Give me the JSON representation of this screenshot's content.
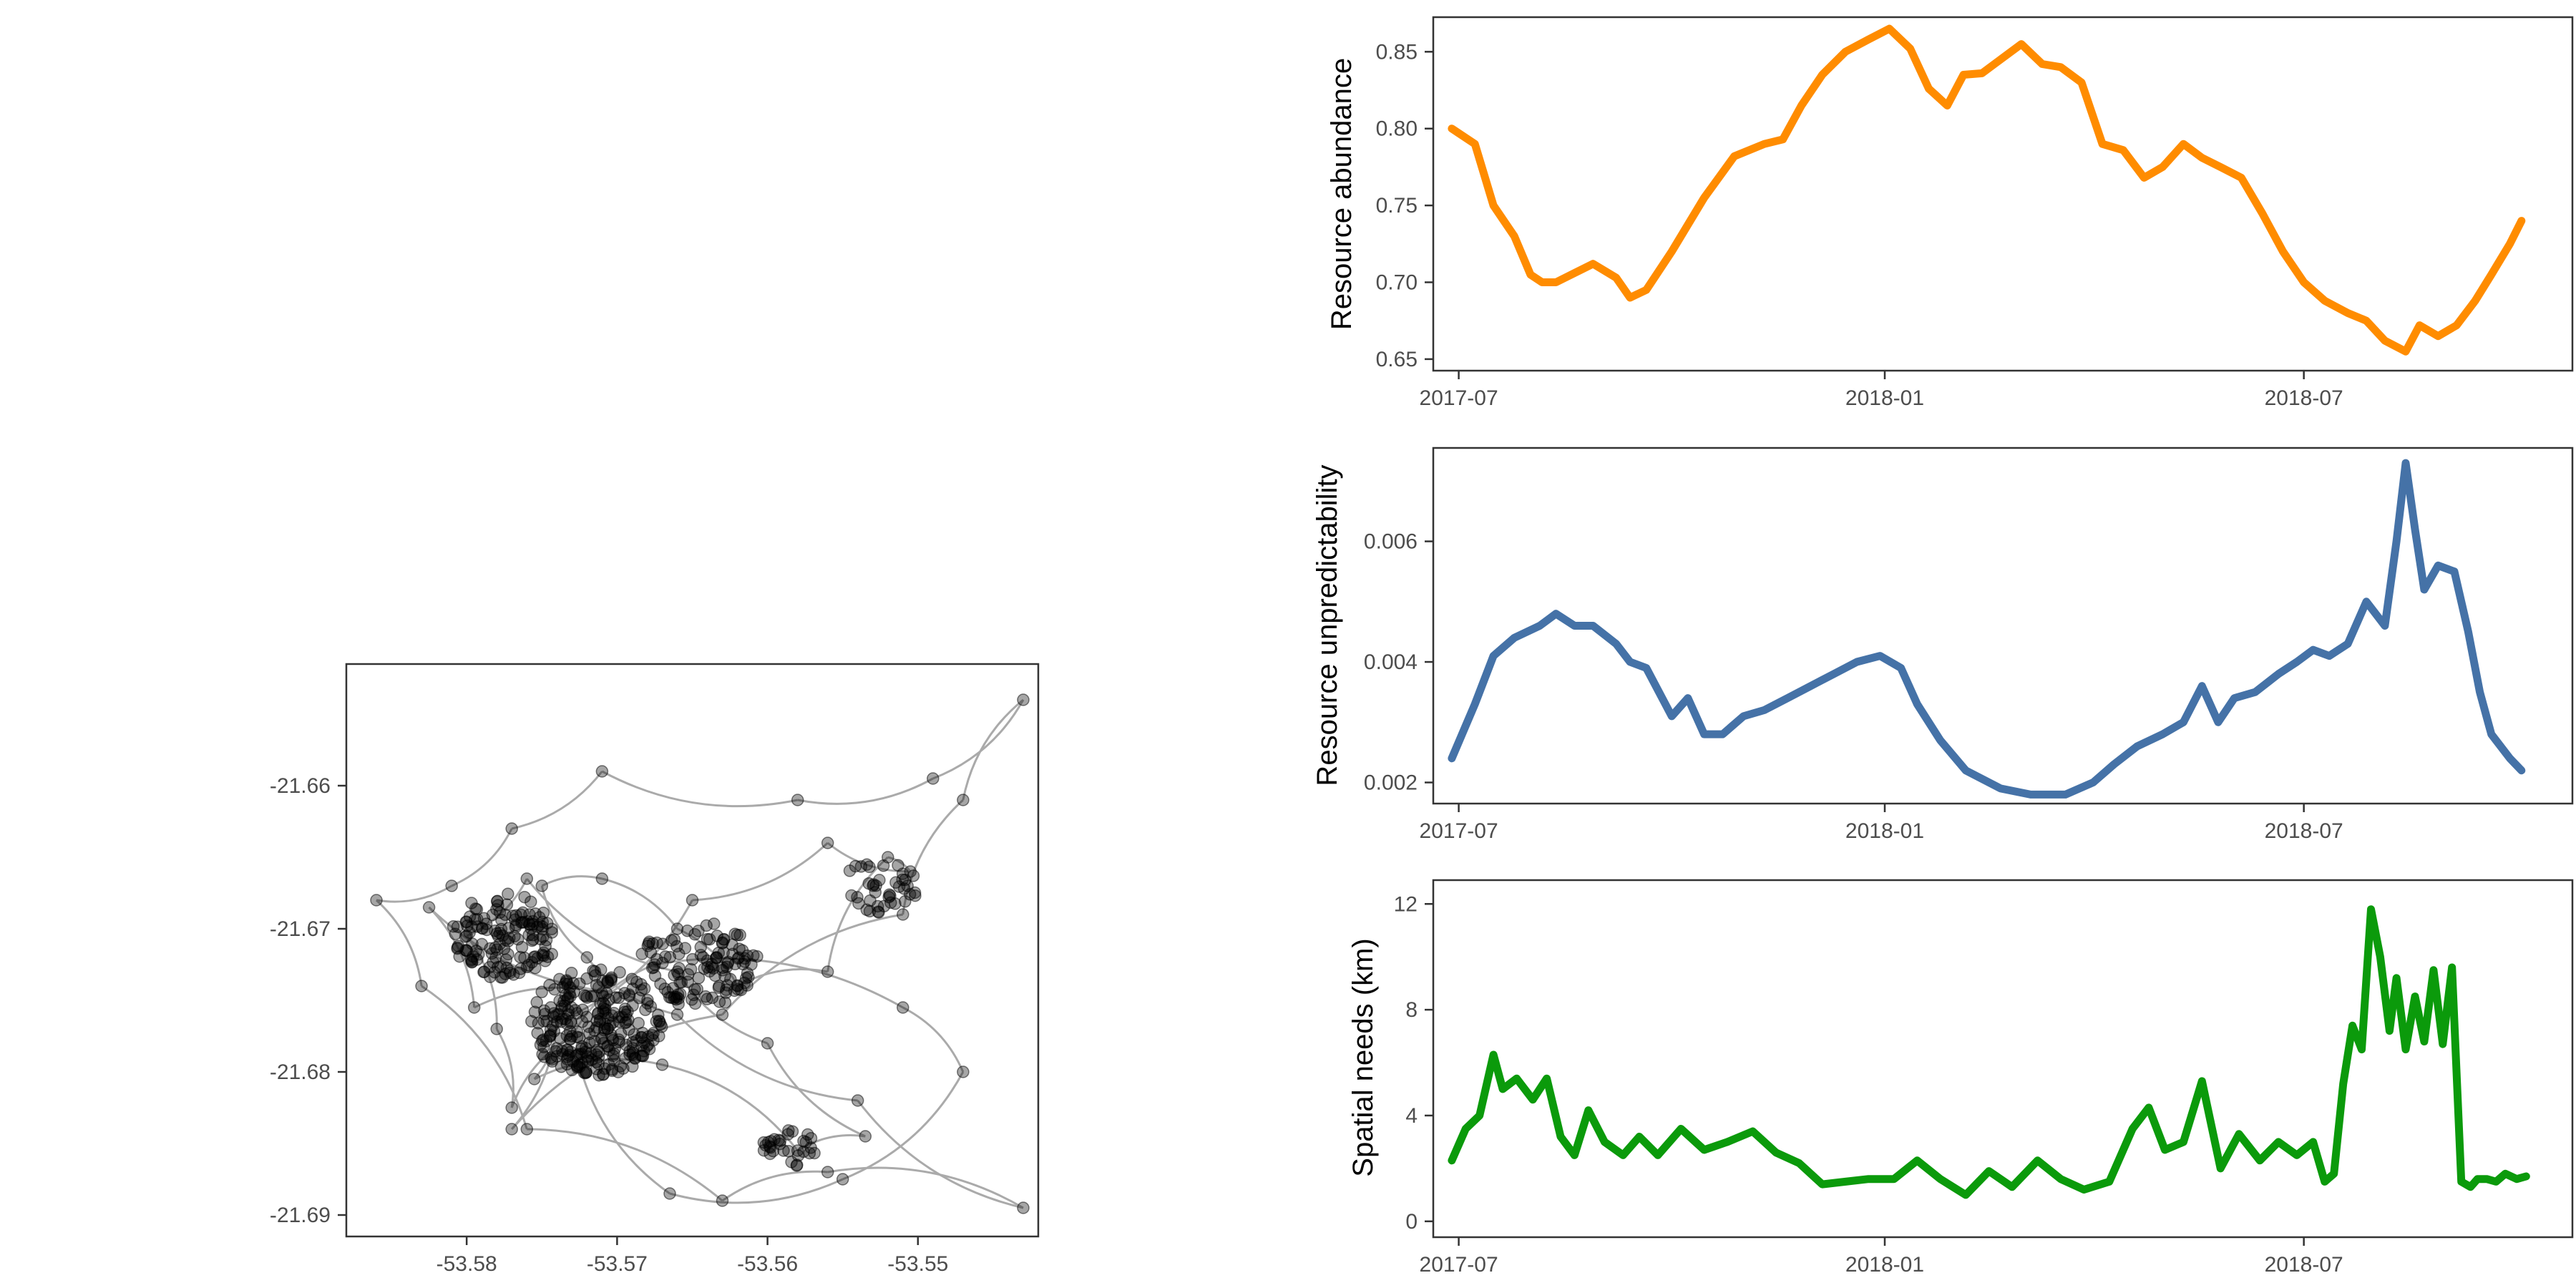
{
  "chart_data": [
    {
      "type": "scatter",
      "title": "",
      "xlabel": "",
      "ylabel": "",
      "xlim": [
        -53.588,
        -53.542
      ],
      "ylim": [
        -21.6915,
        -21.6515
      ],
      "xticks": [
        -53.58,
        -53.57,
        -53.56,
        -53.55
      ],
      "xtick_labels": [
        "-53.58",
        "-53.57",
        "-53.56",
        "-53.55"
      ],
      "yticks": [
        -21.66,
        -21.67,
        -21.68,
        -21.69
      ],
      "ytick_labels": [
        "-21.66",
        "-21.67",
        "-21.68",
        "-21.69"
      ],
      "grid": false,
      "point_color": "#000000",
      "track_color": "#aaaaaa",
      "track_points": [
        [
          -53.574,
          -21.676
        ],
        [
          -53.577,
          -21.684
        ],
        [
          -53.563,
          -21.676
        ],
        [
          -53.551,
          -21.669
        ],
        [
          -53.547,
          -21.661
        ],
        [
          -53.543,
          -21.654
        ],
        [
          -53.549,
          -21.6595
        ],
        [
          -53.558,
          -21.661
        ],
        [
          -53.571,
          -21.659
        ],
        [
          -53.577,
          -21.663
        ],
        [
          -53.581,
          -21.667
        ],
        [
          -53.586,
          -21.668
        ],
        [
          -53.583,
          -21.674
        ],
        [
          -53.576,
          -21.684
        ],
        [
          -53.563,
          -21.689
        ],
        [
          -53.556,
          -21.687
        ],
        [
          -53.543,
          -21.6895
        ],
        [
          -53.554,
          -21.682
        ],
        [
          -53.566,
          -21.676
        ],
        [
          -53.572,
          -21.672
        ],
        [
          -53.575,
          -21.667
        ],
        [
          -53.571,
          -21.6665
        ],
        [
          -53.566,
          -21.67
        ],
        [
          -53.562,
          -21.674
        ],
        [
          -53.556,
          -21.673
        ],
        [
          -53.552,
          -21.665
        ],
        [
          -53.5505,
          -21.666
        ],
        [
          -53.556,
          -21.664
        ],
        [
          -53.565,
          -21.668
        ],
        [
          -53.574,
          -21.6765
        ],
        [
          -53.5755,
          -21.6805
        ],
        [
          -53.567,
          -21.6795
        ],
        [
          -53.558,
          -21.6855
        ],
        [
          -53.5535,
          -21.6845
        ],
        [
          -53.56,
          -21.678
        ],
        [
          -53.566,
          -21.673
        ],
        [
          -53.576,
          -21.6665
        ],
        [
          -53.58,
          -21.6705
        ],
        [
          -53.578,
          -21.677
        ],
        [
          -53.577,
          -21.6825
        ],
        [
          -53.573,
          -21.6775
        ],
        [
          -53.5675,
          -21.6725
        ],
        [
          -53.551,
          -21.6755
        ],
        [
          -53.547,
          -21.68
        ],
        [
          -53.555,
          -21.6875
        ],
        [
          -53.5665,
          -21.6885
        ],
        [
          -53.5725,
          -21.6795
        ],
        [
          -53.5695,
          -21.6745
        ],
        [
          -53.5825,
          -21.6685
        ],
        [
          -53.5795,
          -21.6755
        ],
        [
          -53.571,
          -21.6745
        ]
      ]
    },
    {
      "type": "line",
      "title": "",
      "xlabel": "",
      "ylabel": "Resource abundance",
      "x_range": [
        "2017-06-20",
        "2018-10-25"
      ],
      "ylim": [
        0.6425,
        0.8725
      ],
      "xticks": [
        "2017-07-01",
        "2018-01-01",
        "2018-07-01"
      ],
      "xtick_labels": [
        "2017-07",
        "2018-01",
        "2018-07"
      ],
      "yticks": [
        0.65,
        0.7,
        0.75,
        0.8,
        0.85
      ],
      "ytick_labels": [
        "0.65",
        "0.70",
        "0.75",
        "0.80",
        "0.85"
      ],
      "grid": false,
      "color": "#ff8c00",
      "series": [
        {
          "x": [
            "2017-06-28",
            "2017-07-08",
            "2017-07-16",
            "2017-07-25",
            "2017-08-01",
            "2017-08-06",
            "2017-08-12",
            "2017-08-20",
            "2017-08-28",
            "2017-09-07",
            "2017-09-13",
            "2017-09-20",
            "2017-10-01",
            "2017-10-15",
            "2017-10-28",
            "2017-11-10",
            "2017-11-18",
            "2017-11-26",
            "2017-12-05",
            "2017-12-15",
            "2017-12-25",
            "2018-01-03",
            "2018-01-12",
            "2018-01-20",
            "2018-01-28",
            "2018-02-04",
            "2018-02-12",
            "2018-02-20",
            "2018-03-01",
            "2018-03-10",
            "2018-03-18",
            "2018-03-27",
            "2018-04-05",
            "2018-04-14",
            "2018-04-23",
            "2018-05-01",
            "2018-05-10",
            "2018-05-18",
            "2018-05-26",
            "2018-06-04",
            "2018-06-13",
            "2018-06-22",
            "2018-07-01",
            "2018-07-10",
            "2018-07-20",
            "2018-07-28",
            "2018-08-05",
            "2018-08-14",
            "2018-08-20",
            "2018-08-28",
            "2018-09-05",
            "2018-09-13",
            "2018-09-20",
            "2018-09-28",
            "2018-10-03"
          ],
          "y": [
            0.8,
            0.79,
            0.75,
            0.73,
            0.705,
            0.7,
            0.7,
            0.706,
            0.712,
            0.703,
            0.69,
            0.695,
            0.72,
            0.755,
            0.782,
            0.79,
            0.793,
            0.815,
            0.835,
            0.85,
            0.858,
            0.865,
            0.852,
            0.826,
            0.815,
            0.835,
            0.836,
            0.845,
            0.855,
            0.842,
            0.84,
            0.83,
            0.79,
            0.786,
            0.768,
            0.775,
            0.79,
            0.781,
            0.775,
            0.768,
            0.745,
            0.72,
            0.7,
            0.688,
            0.68,
            0.675,
            0.662,
            0.655,
            0.672,
            0.665,
            0.672,
            0.688,
            0.705,
            0.725,
            0.74
          ]
        }
      ]
    },
    {
      "type": "line",
      "title": "",
      "xlabel": "",
      "ylabel": "Resource unpredictability",
      "x_range": [
        "2017-06-20",
        "2018-10-25"
      ],
      "ylim": [
        0.00165,
        0.00755
      ],
      "xticks": [
        "2017-07-01",
        "2018-01-01",
        "2018-07-01"
      ],
      "xtick_labels": [
        "2017-07",
        "2018-01",
        "2018-07"
      ],
      "yticks": [
        0.002,
        0.004,
        0.006
      ],
      "ytick_labels": [
        "0.002",
        "0.004",
        "0.006"
      ],
      "grid": false,
      "color": "#4572a7",
      "series": [
        {
          "x": [
            "2017-06-28",
            "2017-07-08",
            "2017-07-16",
            "2017-07-25",
            "2017-08-05",
            "2017-08-12",
            "2017-08-20",
            "2017-08-28",
            "2017-09-07",
            "2017-09-13",
            "2017-09-20",
            "2017-10-01",
            "2017-10-08",
            "2017-10-15",
            "2017-10-23",
            "2017-11-01",
            "2017-11-10",
            "2017-11-20",
            "2017-11-30",
            "2017-12-10",
            "2017-12-20",
            "2017-12-30",
            "2018-01-08",
            "2018-01-15",
            "2018-01-25",
            "2018-02-05",
            "2018-02-20",
            "2018-03-05",
            "2018-03-20",
            "2018-04-01",
            "2018-04-10",
            "2018-04-20",
            "2018-05-01",
            "2018-05-10",
            "2018-05-18",
            "2018-05-25",
            "2018-06-01",
            "2018-06-10",
            "2018-06-20",
            "2018-06-28",
            "2018-07-05",
            "2018-07-12",
            "2018-07-20",
            "2018-07-28",
            "2018-08-05",
            "2018-08-10",
            "2018-08-14",
            "2018-08-18",
            "2018-08-22",
            "2018-08-28",
            "2018-09-04",
            "2018-09-10",
            "2018-09-15",
            "2018-09-20",
            "2018-09-28",
            "2018-10-03"
          ],
          "y": [
            0.0024,
            0.0033,
            0.0041,
            0.0044,
            0.0046,
            0.0048,
            0.0046,
            0.0046,
            0.0043,
            0.004,
            0.0039,
            0.0031,
            0.0034,
            0.0028,
            0.0028,
            0.0031,
            0.0032,
            0.0034,
            0.0036,
            0.0038,
            0.004,
            0.0041,
            0.0039,
            0.0033,
            0.0027,
            0.0022,
            0.0019,
            0.0018,
            0.0018,
            0.002,
            0.0023,
            0.0026,
            0.0028,
            0.003,
            0.0036,
            0.003,
            0.0034,
            0.0035,
            0.0038,
            0.004,
            0.0042,
            0.0041,
            0.0043,
            0.005,
            0.0046,
            0.006,
            0.0073,
            0.0062,
            0.0052,
            0.0056,
            0.0055,
            0.0045,
            0.0035,
            0.0028,
            0.0024,
            0.0022
          ]
        }
      ]
    },
    {
      "type": "line",
      "title": "",
      "xlabel": "",
      "ylabel": "Spatial needs (km)",
      "x_range": [
        "2017-06-20",
        "2018-10-25"
      ],
      "ylim": [
        -0.6,
        12.9
      ],
      "xticks": [
        "2017-07-01",
        "2018-01-01",
        "2018-07-01"
      ],
      "xtick_labels": [
        "2017-07",
        "2018-01",
        "2018-07"
      ],
      "yticks": [
        0,
        4,
        8,
        12
      ],
      "ytick_labels": [
        "0",
        "4",
        "8",
        "12"
      ],
      "grid": false,
      "color": "#0b9a0b",
      "series": [
        {
          "x": [
            "2017-06-28",
            "2017-07-04",
            "2017-07-10",
            "2017-07-16",
            "2017-07-20",
            "2017-07-26",
            "2017-08-02",
            "2017-08-08",
            "2017-08-14",
            "2017-08-20",
            "2017-08-26",
            "2017-09-02",
            "2017-09-10",
            "2017-09-17",
            "2017-09-25",
            "2017-10-05",
            "2017-10-15",
            "2017-10-25",
            "2017-11-05",
            "2017-11-15",
            "2017-11-25",
            "2017-12-05",
            "2017-12-15",
            "2017-12-25",
            "2018-01-05",
            "2018-01-15",
            "2018-01-25",
            "2018-02-05",
            "2018-02-15",
            "2018-02-25",
            "2018-03-08",
            "2018-03-18",
            "2018-03-28",
            "2018-04-08",
            "2018-04-18",
            "2018-04-25",
            "2018-05-02",
            "2018-05-10",
            "2018-05-18",
            "2018-05-26",
            "2018-06-03",
            "2018-06-12",
            "2018-06-20",
            "2018-06-28",
            "2018-07-05",
            "2018-07-10",
            "2018-07-14",
            "2018-07-18",
            "2018-07-22",
            "2018-07-26",
            "2018-07-30",
            "2018-08-03",
            "2018-08-07",
            "2018-08-10",
            "2018-08-14",
            "2018-08-18",
            "2018-08-22",
            "2018-08-26",
            "2018-08-30",
            "2018-09-03",
            "2018-09-07",
            "2018-09-11",
            "2018-09-14",
            "2018-09-18",
            "2018-09-22",
            "2018-09-26",
            "2018-10-01",
            "2018-10-05"
          ],
          "y": [
            2.3,
            3.5,
            4.0,
            6.3,
            5.0,
            5.4,
            4.6,
            5.4,
            3.2,
            2.5,
            4.2,
            3.0,
            2.5,
            3.2,
            2.5,
            3.5,
            2.7,
            3.0,
            3.4,
            2.6,
            2.2,
            1.4,
            1.5,
            1.6,
            1.6,
            2.3,
            1.6,
            1.0,
            1.9,
            1.3,
            2.3,
            1.6,
            1.2,
            1.5,
            3.5,
            4.3,
            2.7,
            3.0,
            5.3,
            2.0,
            3.3,
            2.3,
            3.0,
            2.5,
            3.0,
            1.5,
            1.8,
            5.2,
            7.4,
            6.5,
            11.8,
            10.0,
            7.2,
            9.2,
            6.5,
            8.5,
            6.8,
            9.5,
            6.7,
            9.6,
            1.5,
            1.3,
            1.6,
            1.6,
            1.5,
            1.8,
            1.6,
            1.7
          ]
        }
      ]
    }
  ]
}
